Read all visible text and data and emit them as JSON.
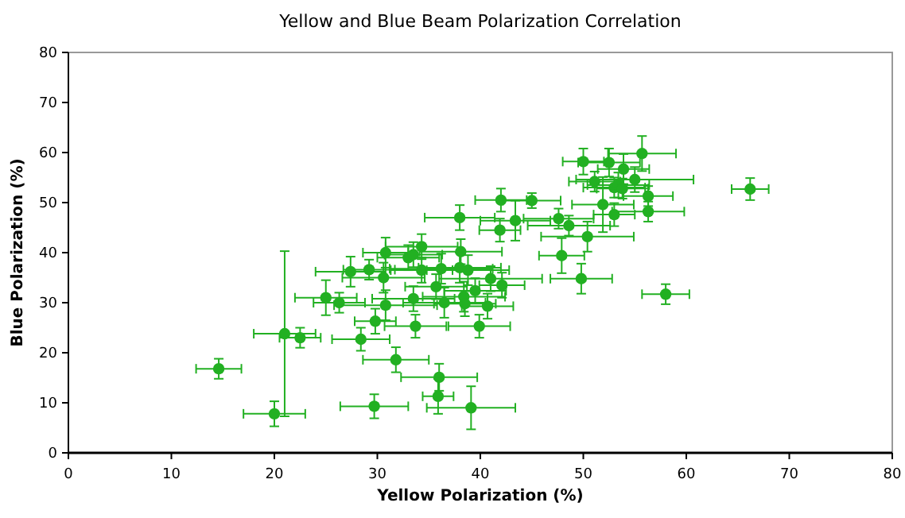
{
  "chart_data": {
    "type": "scatter",
    "title": "Yellow  and Blue Beam Polarization Correlation",
    "xlabel": "Yellow Polarization  (%)",
    "ylabel": "Blue Polarization  (%)",
    "xlim": [
      0,
      80
    ],
    "ylim": [
      0,
      80
    ],
    "xticks": [
      0,
      10,
      20,
      30,
      40,
      50,
      60,
      70,
      80
    ],
    "yticks": [
      0,
      10,
      20,
      30,
      40,
      50,
      60,
      70,
      80
    ],
    "grid": false,
    "marker": "circle",
    "series": [
      {
        "color": "#22b022",
        "x": [
          14.6,
          20,
          21,
          22.5,
          25,
          26.3,
          27.4,
          28.4,
          29.2,
          29.7,
          29.8,
          30.6,
          30.8,
          30.8,
          31.8,
          33,
          33.5,
          33.5,
          33.7,
          34.3,
          34.3,
          35.7,
          36,
          35.9,
          36.2,
          36.5,
          38,
          38,
          38.1,
          38.4,
          38.5,
          38.8,
          39.1,
          39.5,
          39.9,
          40.7,
          41,
          42,
          41.9,
          42.1,
          43.4,
          45,
          47.6,
          47.9,
          48.6,
          49.8,
          50,
          50.4,
          51.1,
          51.9,
          52.5,
          53,
          53,
          53.4,
          53.8,
          53.9,
          55,
          55.7,
          56.3,
          56.3,
          58,
          66.2
        ],
        "values": [
          16.8,
          7.8,
          23.8,
          23,
          31,
          30,
          36.2,
          22.7,
          36.6,
          9.3,
          26.3,
          35,
          40,
          29.5,
          18.6,
          39,
          39.6,
          30.8,
          25.3,
          41.2,
          36.5,
          33.2,
          15.1,
          11.3,
          36.8,
          30,
          47,
          37,
          40.2,
          31.2,
          29.8,
          36.5,
          9,
          32.4,
          25.3,
          29.3,
          34.8,
          50.5,
          44.5,
          33.5,
          46.4,
          50.4,
          46.8,
          39.4,
          45.4,
          34.8,
          58.2,
          43.2,
          54.2,
          49.6,
          58,
          47.6,
          53,
          53.5,
          52.8,
          56.7,
          54.6,
          59.8,
          51.3,
          48.2,
          31.7,
          52.7
        ],
        "xerrors": [
          2.2,
          3,
          3,
          2,
          3,
          2.5,
          3.4,
          2.8,
          2.5,
          3.3,
          2,
          4,
          2.2,
          5,
          3.2,
          3,
          2.8,
          4,
          3,
          3.5,
          3,
          3,
          3.7,
          1.5,
          5,
          4,
          3.4,
          4,
          4,
          4,
          3,
          4,
          4.3,
          3,
          3,
          2.5,
          5,
          2.5,
          2,
          2.2,
          3.4,
          2.8,
          3.4,
          2.2,
          4,
          3,
          2,
          4.5,
          2.5,
          3,
          3,
          2,
          3,
          3,
          2.5,
          2.5,
          5.7,
          3.3,
          2.4,
          3.5,
          2.3,
          1.8
        ],
        "errors": [
          2,
          2.5,
          16.5,
          2,
          3.5,
          2,
          3,
          2.3,
          2,
          2.4,
          2.5,
          3,
          3,
          3,
          2.5,
          2.5,
          2.5,
          2.5,
          2.3,
          2.5,
          2.5,
          2.5,
          2.7,
          3.5,
          3,
          3,
          2.5,
          3,
          2.5,
          3,
          2.5,
          3,
          4.3,
          2.5,
          2.3,
          2.5,
          2.5,
          2.3,
          2.3,
          2.5,
          4,
          1.5,
          2,
          3.5,
          2,
          3,
          2.6,
          3,
          2,
          5.5,
          2.8,
          2.3,
          2,
          2.5,
          2,
          3,
          2.5,
          3.5,
          2,
          2,
          2,
          2.2
        ]
      }
    ]
  }
}
